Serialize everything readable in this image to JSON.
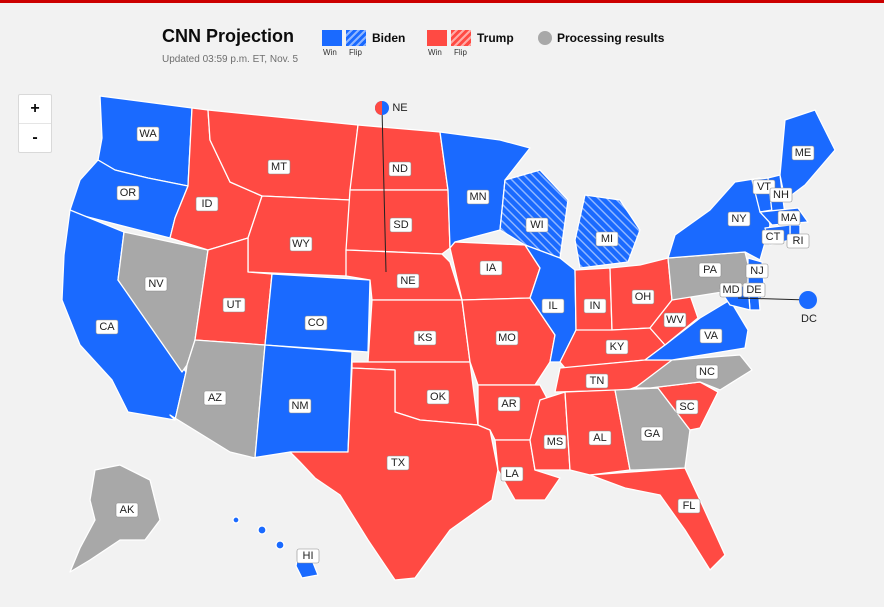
{
  "header": {
    "title": "CNN Projection",
    "updated": "Updated 03:59 p.m. ET, Nov. 5"
  },
  "legend": {
    "biden": {
      "label": "Biden",
      "win": "Win",
      "flip": "Flip"
    },
    "trump": {
      "label": "Trump",
      "win": "Win",
      "flip": "Flip"
    },
    "processing": {
      "label": "Processing results"
    }
  },
  "zoom": {
    "in": "+",
    "out": "-"
  },
  "colors": {
    "biden": "#1a6aff",
    "trump": "#ff4a43",
    "processing": "#a8a8a8",
    "background": "#f2f2f2"
  },
  "states": [
    {
      "abbr": "WA",
      "status": "biden"
    },
    {
      "abbr": "OR",
      "status": "biden"
    },
    {
      "abbr": "CA",
      "status": "biden"
    },
    {
      "abbr": "NV",
      "status": "processing"
    },
    {
      "abbr": "ID",
      "status": "trump"
    },
    {
      "abbr": "MT",
      "status": "trump"
    },
    {
      "abbr": "WY",
      "status": "trump"
    },
    {
      "abbr": "UT",
      "status": "trump"
    },
    {
      "abbr": "AZ",
      "status": "processing"
    },
    {
      "abbr": "CO",
      "status": "biden"
    },
    {
      "abbr": "NM",
      "status": "biden"
    },
    {
      "abbr": "ND",
      "status": "trump"
    },
    {
      "abbr": "SD",
      "status": "trump"
    },
    {
      "abbr": "NE",
      "status": "trump"
    },
    {
      "abbr": "KS",
      "status": "trump"
    },
    {
      "abbr": "OK",
      "status": "trump"
    },
    {
      "abbr": "TX",
      "status": "trump"
    },
    {
      "abbr": "MN",
      "status": "biden"
    },
    {
      "abbr": "IA",
      "status": "trump"
    },
    {
      "abbr": "MO",
      "status": "trump"
    },
    {
      "abbr": "AR",
      "status": "trump"
    },
    {
      "abbr": "LA",
      "status": "trump"
    },
    {
      "abbr": "WI",
      "status": "biden-flip"
    },
    {
      "abbr": "IL",
      "status": "biden"
    },
    {
      "abbr": "MI",
      "status": "biden-flip"
    },
    {
      "abbr": "IN",
      "status": "trump"
    },
    {
      "abbr": "OH",
      "status": "trump"
    },
    {
      "abbr": "KY",
      "status": "trump"
    },
    {
      "abbr": "TN",
      "status": "trump"
    },
    {
      "abbr": "MS",
      "status": "trump"
    },
    {
      "abbr": "AL",
      "status": "trump"
    },
    {
      "abbr": "GA",
      "status": "processing"
    },
    {
      "abbr": "FL",
      "status": "trump"
    },
    {
      "abbr": "SC",
      "status": "trump"
    },
    {
      "abbr": "NC",
      "status": "processing"
    },
    {
      "abbr": "VA",
      "status": "biden"
    },
    {
      "abbr": "WV",
      "status": "trump"
    },
    {
      "abbr": "PA",
      "status": "processing"
    },
    {
      "abbr": "NY",
      "status": "biden"
    },
    {
      "abbr": "VT",
      "status": "biden"
    },
    {
      "abbr": "NH",
      "status": "biden"
    },
    {
      "abbr": "ME",
      "status": "biden"
    },
    {
      "abbr": "MA",
      "status": "biden"
    },
    {
      "abbr": "RI",
      "status": "biden"
    },
    {
      "abbr": "CT",
      "status": "biden"
    },
    {
      "abbr": "NJ",
      "status": "biden"
    },
    {
      "abbr": "DE",
      "status": "biden"
    },
    {
      "abbr": "MD",
      "status": "biden"
    },
    {
      "abbr": "DC",
      "status": "biden"
    },
    {
      "abbr": "AK",
      "status": "processing"
    },
    {
      "abbr": "HI",
      "status": "biden"
    }
  ],
  "labels": {
    "WA": "WA",
    "OR": "OR",
    "CA": "CA",
    "NV": "NV",
    "ID": "ID",
    "MT": "MT",
    "WY": "WY",
    "UT": "UT",
    "AZ": "AZ",
    "CO": "CO",
    "NM": "NM",
    "ND": "ND",
    "SD": "SD",
    "NE": "NE",
    "KS": "KS",
    "OK": "OK",
    "TX": "TX",
    "MN": "MN",
    "IA": "IA",
    "MO": "MO",
    "AR": "AR",
    "LA": "LA",
    "WI": "WI",
    "IL": "IL",
    "MI": "MI",
    "IN": "IN",
    "OH": "OH",
    "KY": "KY",
    "TN": "TN",
    "MS": "MS",
    "AL": "AL",
    "GA": "GA",
    "FL": "FL",
    "SC": "SC",
    "NC": "NC",
    "VA": "VA",
    "WV": "WV",
    "PA": "PA",
    "NY": "NY",
    "VT": "VT",
    "NH": "NH",
    "ME": "ME",
    "MA": "MA",
    "RI": "RI",
    "CT": "CT",
    "NJ": "NJ",
    "DE": "DE",
    "MD": "MD",
    "DC": "DC",
    "AK": "AK",
    "HI": "HI",
    "NE_split": "NE"
  }
}
